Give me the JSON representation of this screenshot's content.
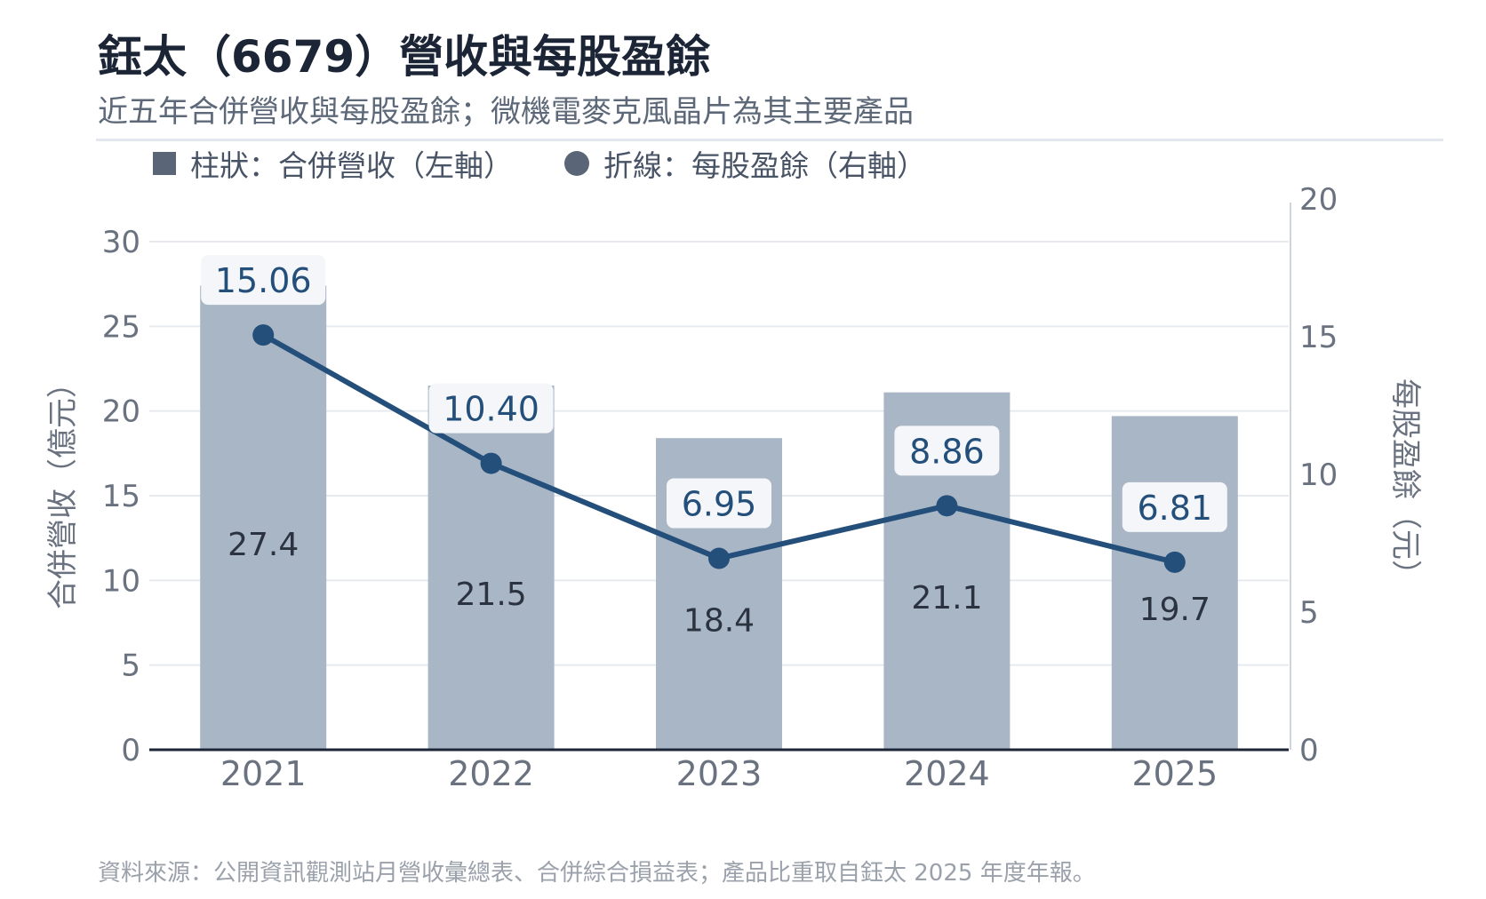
{
  "title": "鈺太（6679）營收與每股盈餘",
  "subtitle": "近五年合併營收與每股盈餘；微機電麥克風晶片為其主要產品",
  "legend": {
    "bar": "柱狀：合併營收（左軸）",
    "line": "折線：每股盈餘（右軸）"
  },
  "source": "資料來源：公開資訊觀測站月營收彙總表、合併綜合損益表；產品比重取自鈺太 2025 年度年報。",
  "colors": {
    "bar": "#a9b6c5",
    "line": "#234f7a",
    "label_text": "#234f7a",
    "grid": "#e6eaef",
    "legend_swatch": "#5a6677"
  },
  "chart_data": {
    "type": "bar",
    "categories": [
      "2021",
      "2022",
      "2023",
      "2024",
      "2025"
    ],
    "series": [
      {
        "name": "合併營收",
        "axis": "left",
        "type": "bar",
        "values": [
          27.4,
          21.5,
          18.4,
          21.1,
          19.7
        ],
        "labels": [
          "27.4",
          "21.5",
          "18.4",
          "21.1",
          "19.7"
        ]
      },
      {
        "name": "每股盈餘",
        "axis": "right",
        "type": "line",
        "values": [
          15.06,
          10.4,
          6.95,
          8.86,
          6.81
        ],
        "labels": [
          "15.06",
          "10.40",
          "6.95",
          "8.86",
          "6.81"
        ]
      }
    ],
    "ylabel": "合併營收（億元）",
    "y2label": "每股盈餘（元）",
    "ylim": [
      0,
      30
    ],
    "yticks": [
      "0",
      "5",
      "10",
      "15",
      "20",
      "25",
      "30"
    ],
    "y2lim": [
      0,
      20
    ],
    "y2ticks": [
      "0",
      "5",
      "10",
      "15",
      "20"
    ],
    "grid": true
  }
}
